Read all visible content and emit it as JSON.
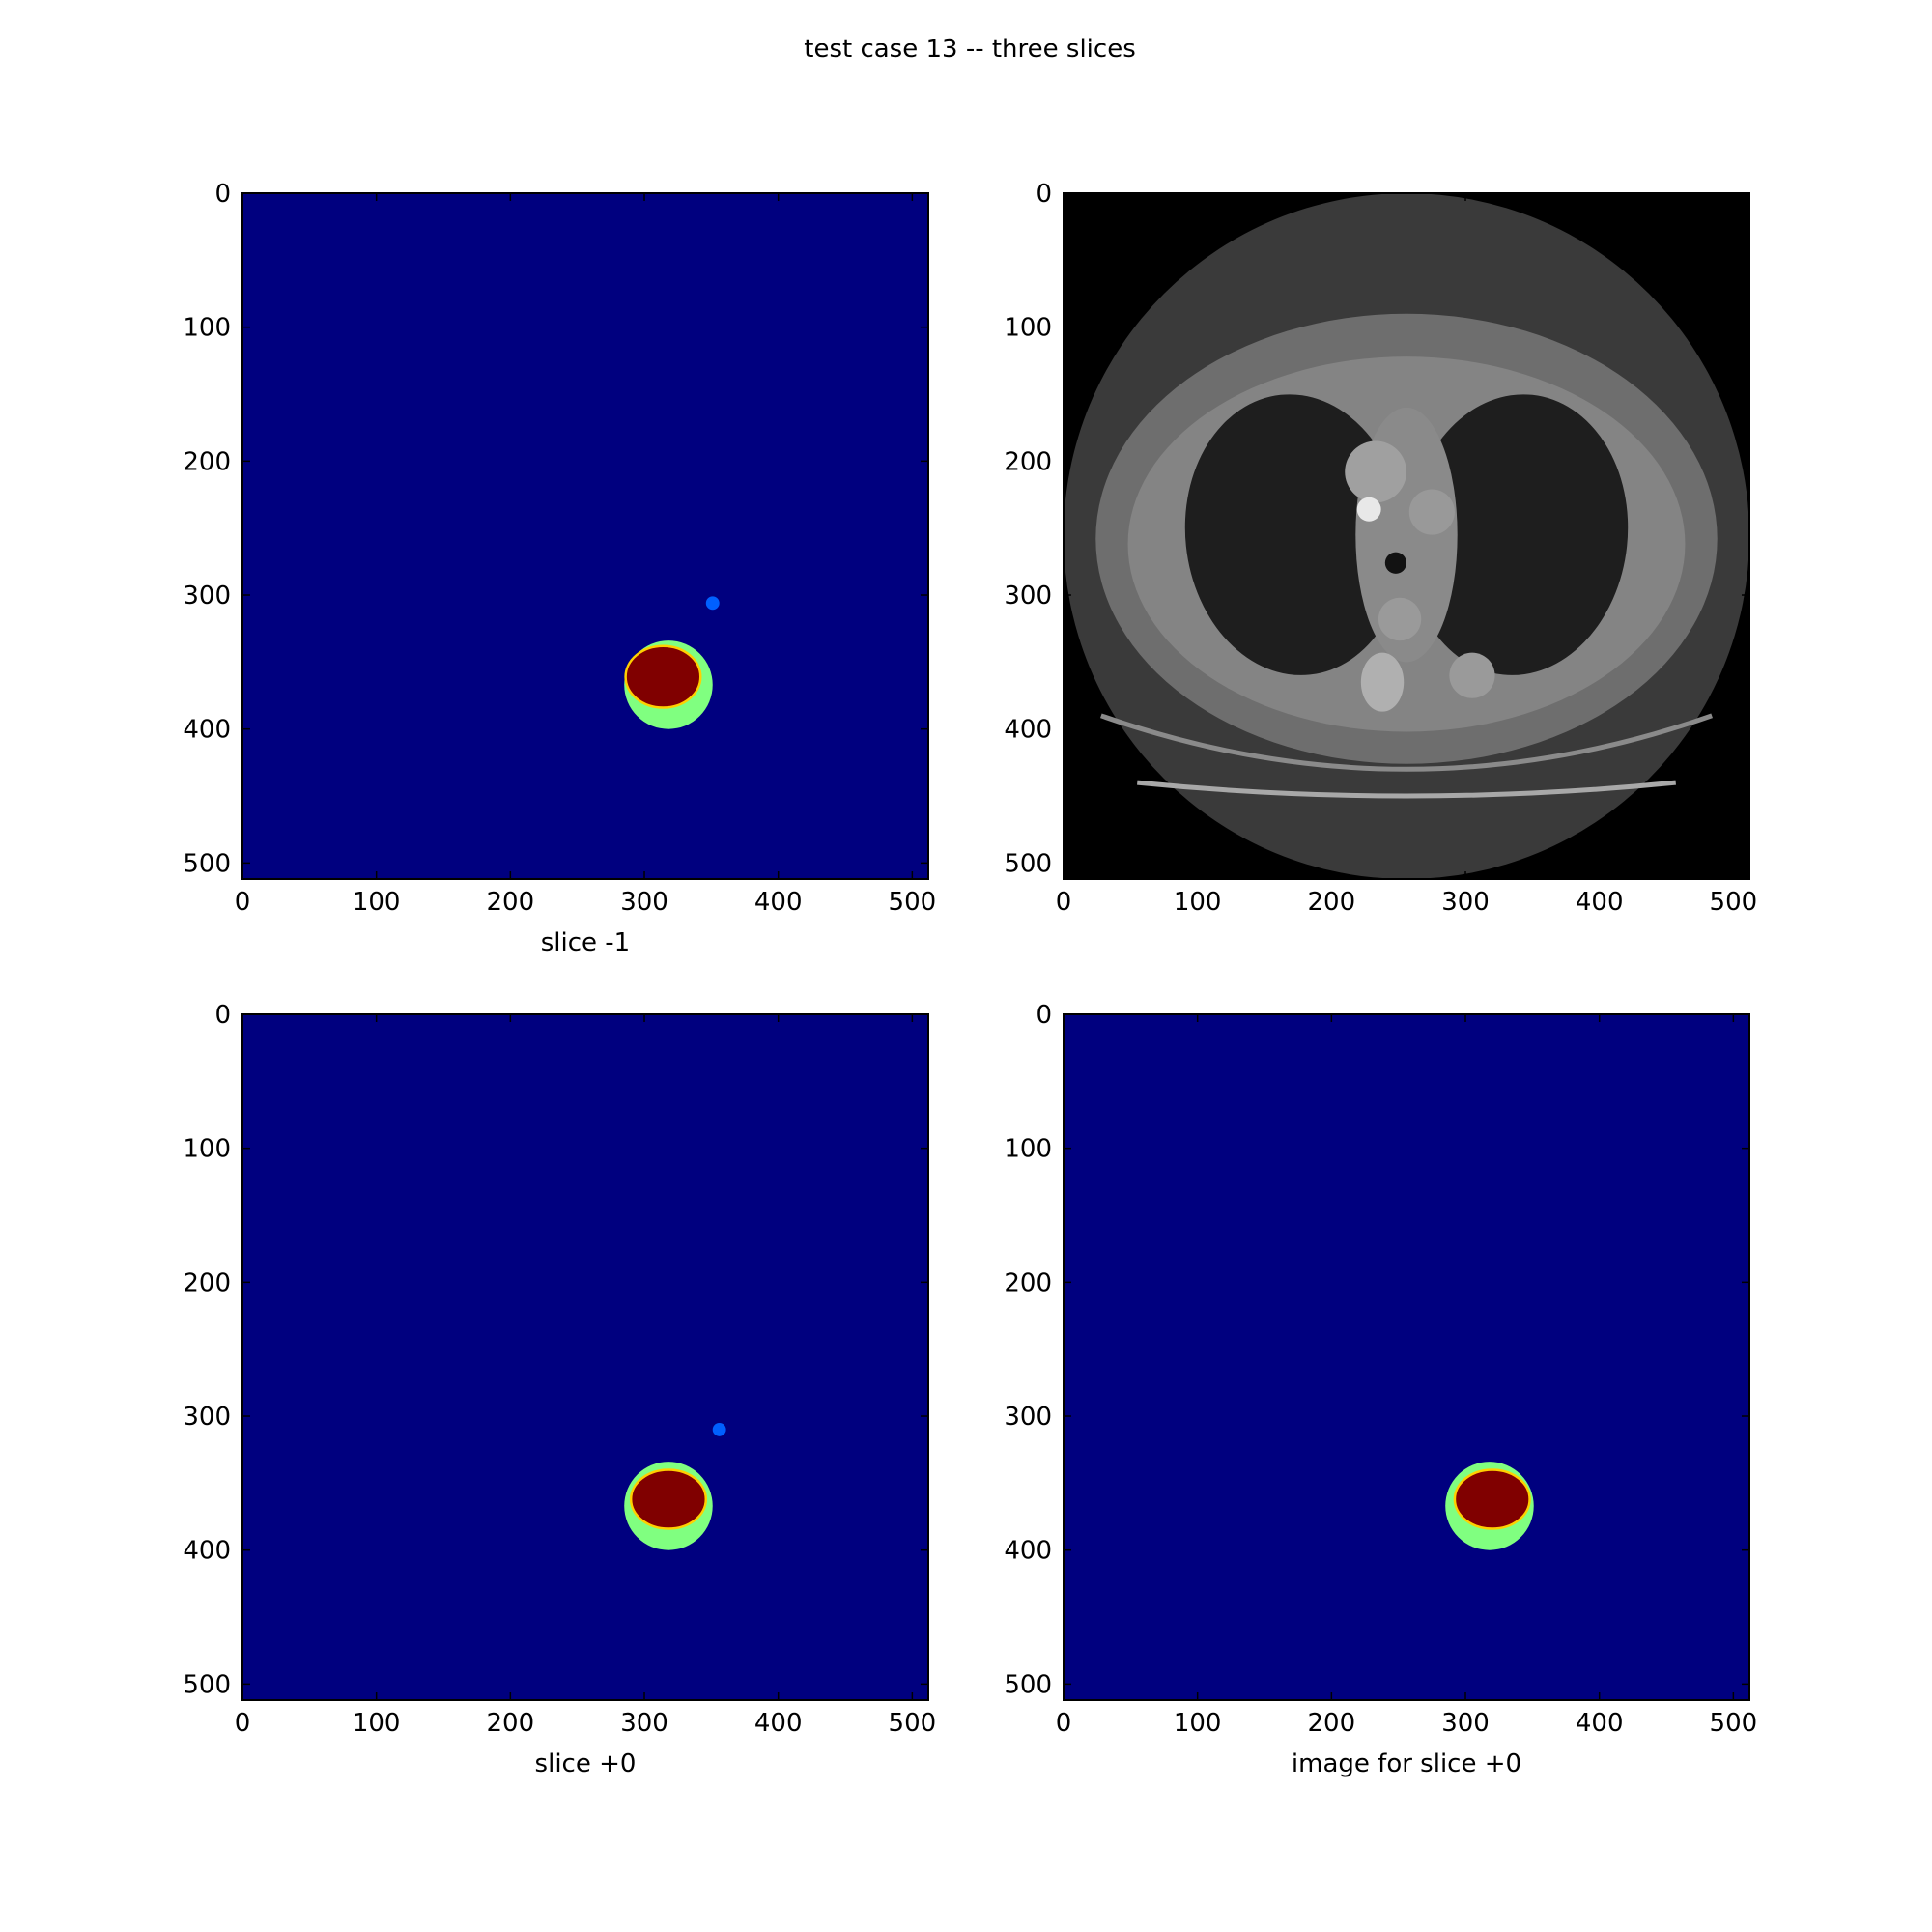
{
  "figure": {
    "title": "test case 13 -- three slices"
  },
  "chart_data": [
    {
      "type": "heatmap",
      "title": "",
      "xlabel": "slice -1",
      "ylabel": "",
      "xlim": [
        0,
        512
      ],
      "ylim": [
        512,
        0
      ],
      "xticks": [
        0,
        100,
        200,
        300,
        400,
        500
      ],
      "yticks": [
        0,
        100,
        200,
        300,
        400,
        500
      ],
      "colormap": "jet",
      "background_color": "#00007f",
      "features": [
        {
          "label": "ring",
          "color": "#80ff80",
          "cx": 318,
          "cy": 367,
          "r": 33
        },
        {
          "label": "core",
          "color": "#800000",
          "cx": 314,
          "cy": 361,
          "rx": 28,
          "ry": 23
        },
        {
          "label": "spot",
          "color": "#0060ff",
          "cx": 351,
          "cy": 306,
          "r": 5
        }
      ]
    },
    {
      "type": "heatmap",
      "title": "",
      "xlabel": "",
      "ylabel": "",
      "xlim": [
        0,
        512
      ],
      "ylim": [
        512,
        0
      ],
      "xticks": [
        0,
        100,
        200,
        300,
        400,
        500
      ],
      "yticks": [
        0,
        100,
        200,
        300,
        400,
        500
      ],
      "colormap": "gray",
      "background_color": "#000000",
      "content": "CT axial slice (chest)"
    },
    {
      "type": "heatmap",
      "title": "",
      "xlabel": "slice +0",
      "ylabel": "",
      "xlim": [
        0,
        512
      ],
      "ylim": [
        512,
        0
      ],
      "xticks": [
        0,
        100,
        200,
        300,
        400,
        500
      ],
      "yticks": [
        0,
        100,
        200,
        300,
        400,
        500
      ],
      "colormap": "jet",
      "background_color": "#00007f",
      "features": [
        {
          "label": "ring",
          "color": "#80ff80",
          "cx": 318,
          "cy": 367,
          "r": 33
        },
        {
          "label": "core",
          "color": "#800000",
          "cx": 318,
          "cy": 362,
          "rx": 28,
          "ry": 22
        },
        {
          "label": "spot",
          "color": "#0060ff",
          "cx": 356,
          "cy": 310,
          "r": 5
        }
      ]
    },
    {
      "type": "heatmap",
      "title": "",
      "xlabel": "image for slice +0",
      "ylabel": "",
      "xlim": [
        0,
        512
      ],
      "ylim": [
        512,
        0
      ],
      "xticks": [
        0,
        100,
        200,
        300,
        400,
        500
      ],
      "yticks": [
        0,
        100,
        200,
        300,
        400,
        500
      ],
      "colormap": "jet",
      "background_color": "#00007f",
      "features": [
        {
          "label": "ring",
          "color": "#80ff80",
          "cx": 318,
          "cy": 367,
          "r": 33
        },
        {
          "label": "core",
          "color": "#800000",
          "cx": 320,
          "cy": 362,
          "rx": 28,
          "ry": 22
        }
      ]
    }
  ]
}
